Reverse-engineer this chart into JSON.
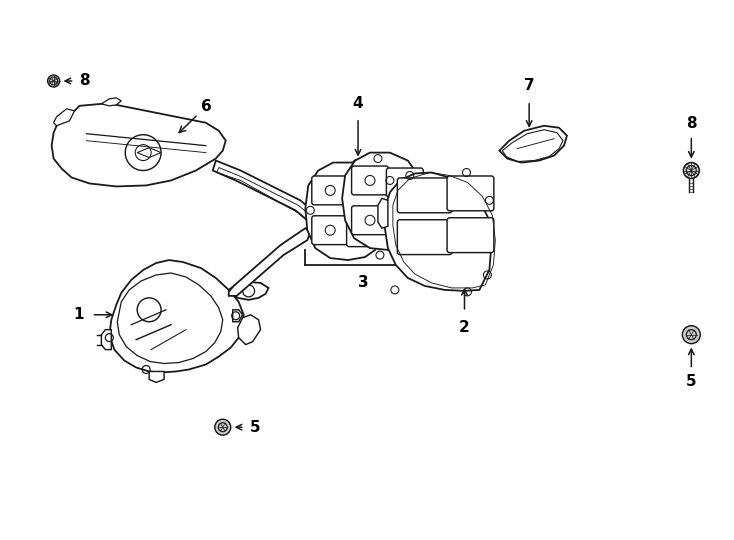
{
  "background": "#ffffff",
  "line_color": "#1a1a1a",
  "line_width": 1.3,
  "fig_width": 7.34,
  "fig_height": 5.4,
  "dpi": 100
}
